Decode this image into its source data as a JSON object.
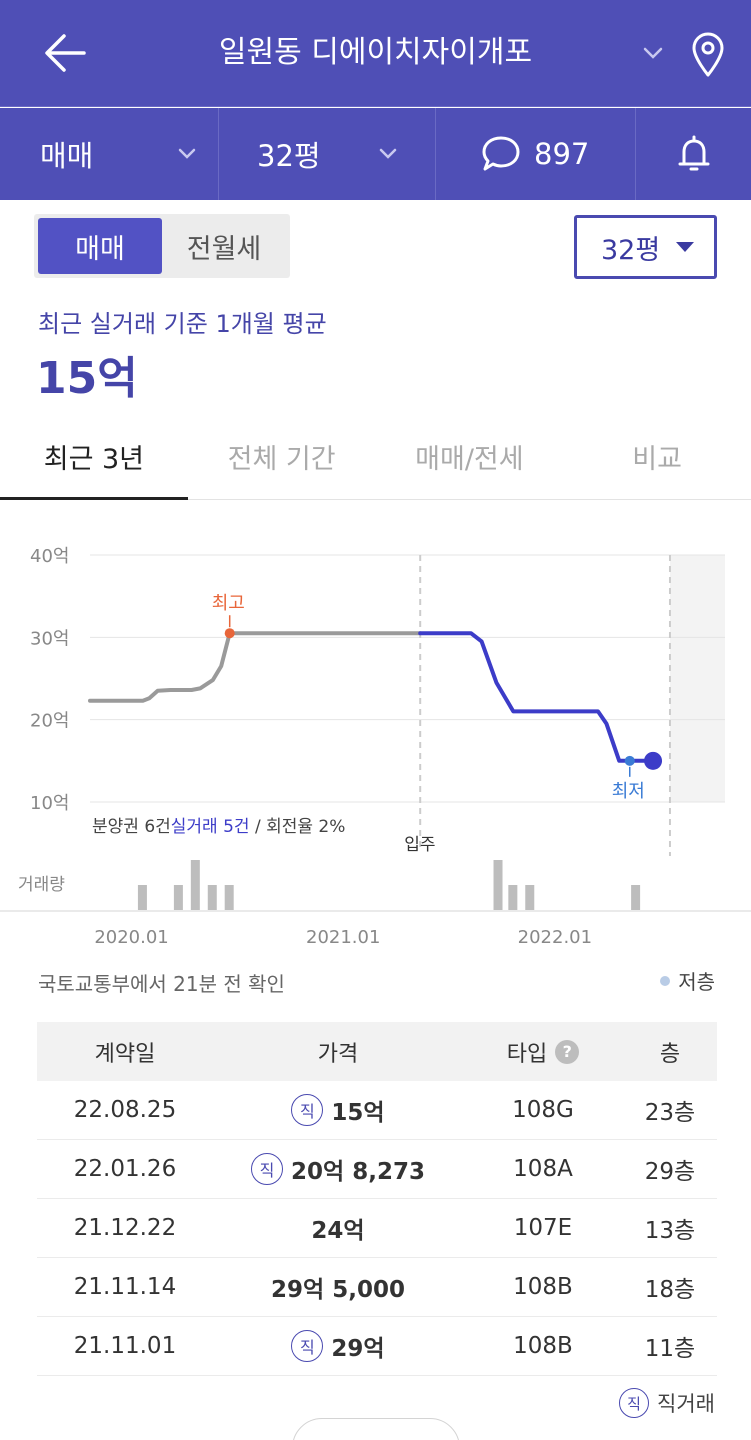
{
  "header": {
    "title": "일원동 디에이치자이개포"
  },
  "subbar": {
    "deal_type": "매매",
    "size": "32평",
    "comment_count": "897"
  },
  "toggle": {
    "options": [
      "매매",
      "전월세"
    ],
    "selected": "매매"
  },
  "size_select": "32평",
  "summary": {
    "caption": "최근 실거래 기준 1개월 평균",
    "price": "15억"
  },
  "tabs": [
    "최근 3년",
    "전체 기간",
    "매매/전세",
    "비교"
  ],
  "colors": {
    "brand": "#4f4fb6",
    "accent": "#3c3cc8",
    "high_marker": "#e8663a",
    "low_marker": "#3a7bd5",
    "volume": "#bdbdbd"
  },
  "chart_data": {
    "type": "line",
    "y_ticks": [
      "40억",
      "30억",
      "20억",
      "10억"
    ],
    "ylim": [
      10,
      40
    ],
    "x_ticks": [
      "2020.01",
      "2021.01",
      "2022.01"
    ],
    "series": [
      {
        "values": [
          [
            2019.9,
            22.3
          ],
          [
            2020.1,
            22.3
          ],
          [
            2020.15,
            22.3
          ],
          [
            2020.18,
            22.6
          ],
          [
            2020.22,
            23.5
          ],
          [
            2020.28,
            23.6
          ],
          [
            2020.38,
            23.6
          ],
          [
            2020.42,
            23.8
          ],
          [
            2020.48,
            24.8
          ],
          [
            2020.52,
            26.5
          ],
          [
            2020.56,
            30.5
          ],
          [
            2020.6,
            30.5
          ],
          [
            2021.46,
            30.5
          ]
        ]
      },
      {
        "values": [
          [
            2021.46,
            30.5
          ],
          [
            2021.7,
            30.5
          ],
          [
            2021.75,
            29.5
          ],
          [
            2021.82,
            24.5
          ],
          [
            2021.9,
            21.0
          ],
          [
            2022.3,
            21.0
          ],
          [
            2022.34,
            19.5
          ],
          [
            2022.4,
            15.0
          ],
          [
            2022.5,
            15.0
          ],
          [
            2022.56,
            15.0
          ]
        ]
      }
    ],
    "annotations": {
      "high_label": "최고",
      "high_point": [
        2020.56,
        30.5
      ],
      "low_label": "최저",
      "low_point": [
        2022.45,
        15.0
      ],
      "move_in_label": "입주",
      "move_in_x": 2021.46,
      "forecast_start_x": 2022.64
    },
    "volume_label": "거래량",
    "volume": [
      {
        "x": 2020.15,
        "v": 3
      },
      {
        "x": 2020.32,
        "v": 3
      },
      {
        "x": 2020.4,
        "v": 6
      },
      {
        "x": 2020.48,
        "v": 3
      },
      {
        "x": 2020.56,
        "v": 3
      },
      {
        "x": 2021.83,
        "v": 6
      },
      {
        "x": 2021.9,
        "v": 3
      },
      {
        "x": 2021.98,
        "v": 3
      },
      {
        "x": 2022.48,
        "v": 3
      }
    ],
    "volume_max": 6,
    "stats_prefix": "분양권 6건",
    "stats_highlight": "실거래 5건",
    "stats_suffix": " / 회전율 2%"
  },
  "source_note": "국토교통부에서 21분 전 확인",
  "legend_low_floor": "저층",
  "table": {
    "headers": [
      "계약일",
      "가격",
      "타입",
      "층"
    ],
    "rows": [
      {
        "date": "22.08.25",
        "direct": true,
        "price": "15억",
        "type": "108G",
        "floor": "23층"
      },
      {
        "date": "22.01.26",
        "direct": true,
        "price": "20억 8,273",
        "type": "108A",
        "floor": "29층"
      },
      {
        "date": "21.12.22",
        "direct": false,
        "price": "24억",
        "type": "107E",
        "floor": "13층"
      },
      {
        "date": "21.11.14",
        "direct": false,
        "price": "29억 5,000",
        "type": "108B",
        "floor": "18층"
      },
      {
        "date": "21.11.01",
        "direct": true,
        "price": "29억",
        "type": "108B",
        "floor": "11층"
      }
    ],
    "direct_badge": "직",
    "help_mark": "?"
  },
  "footnote_label": "직거래"
}
